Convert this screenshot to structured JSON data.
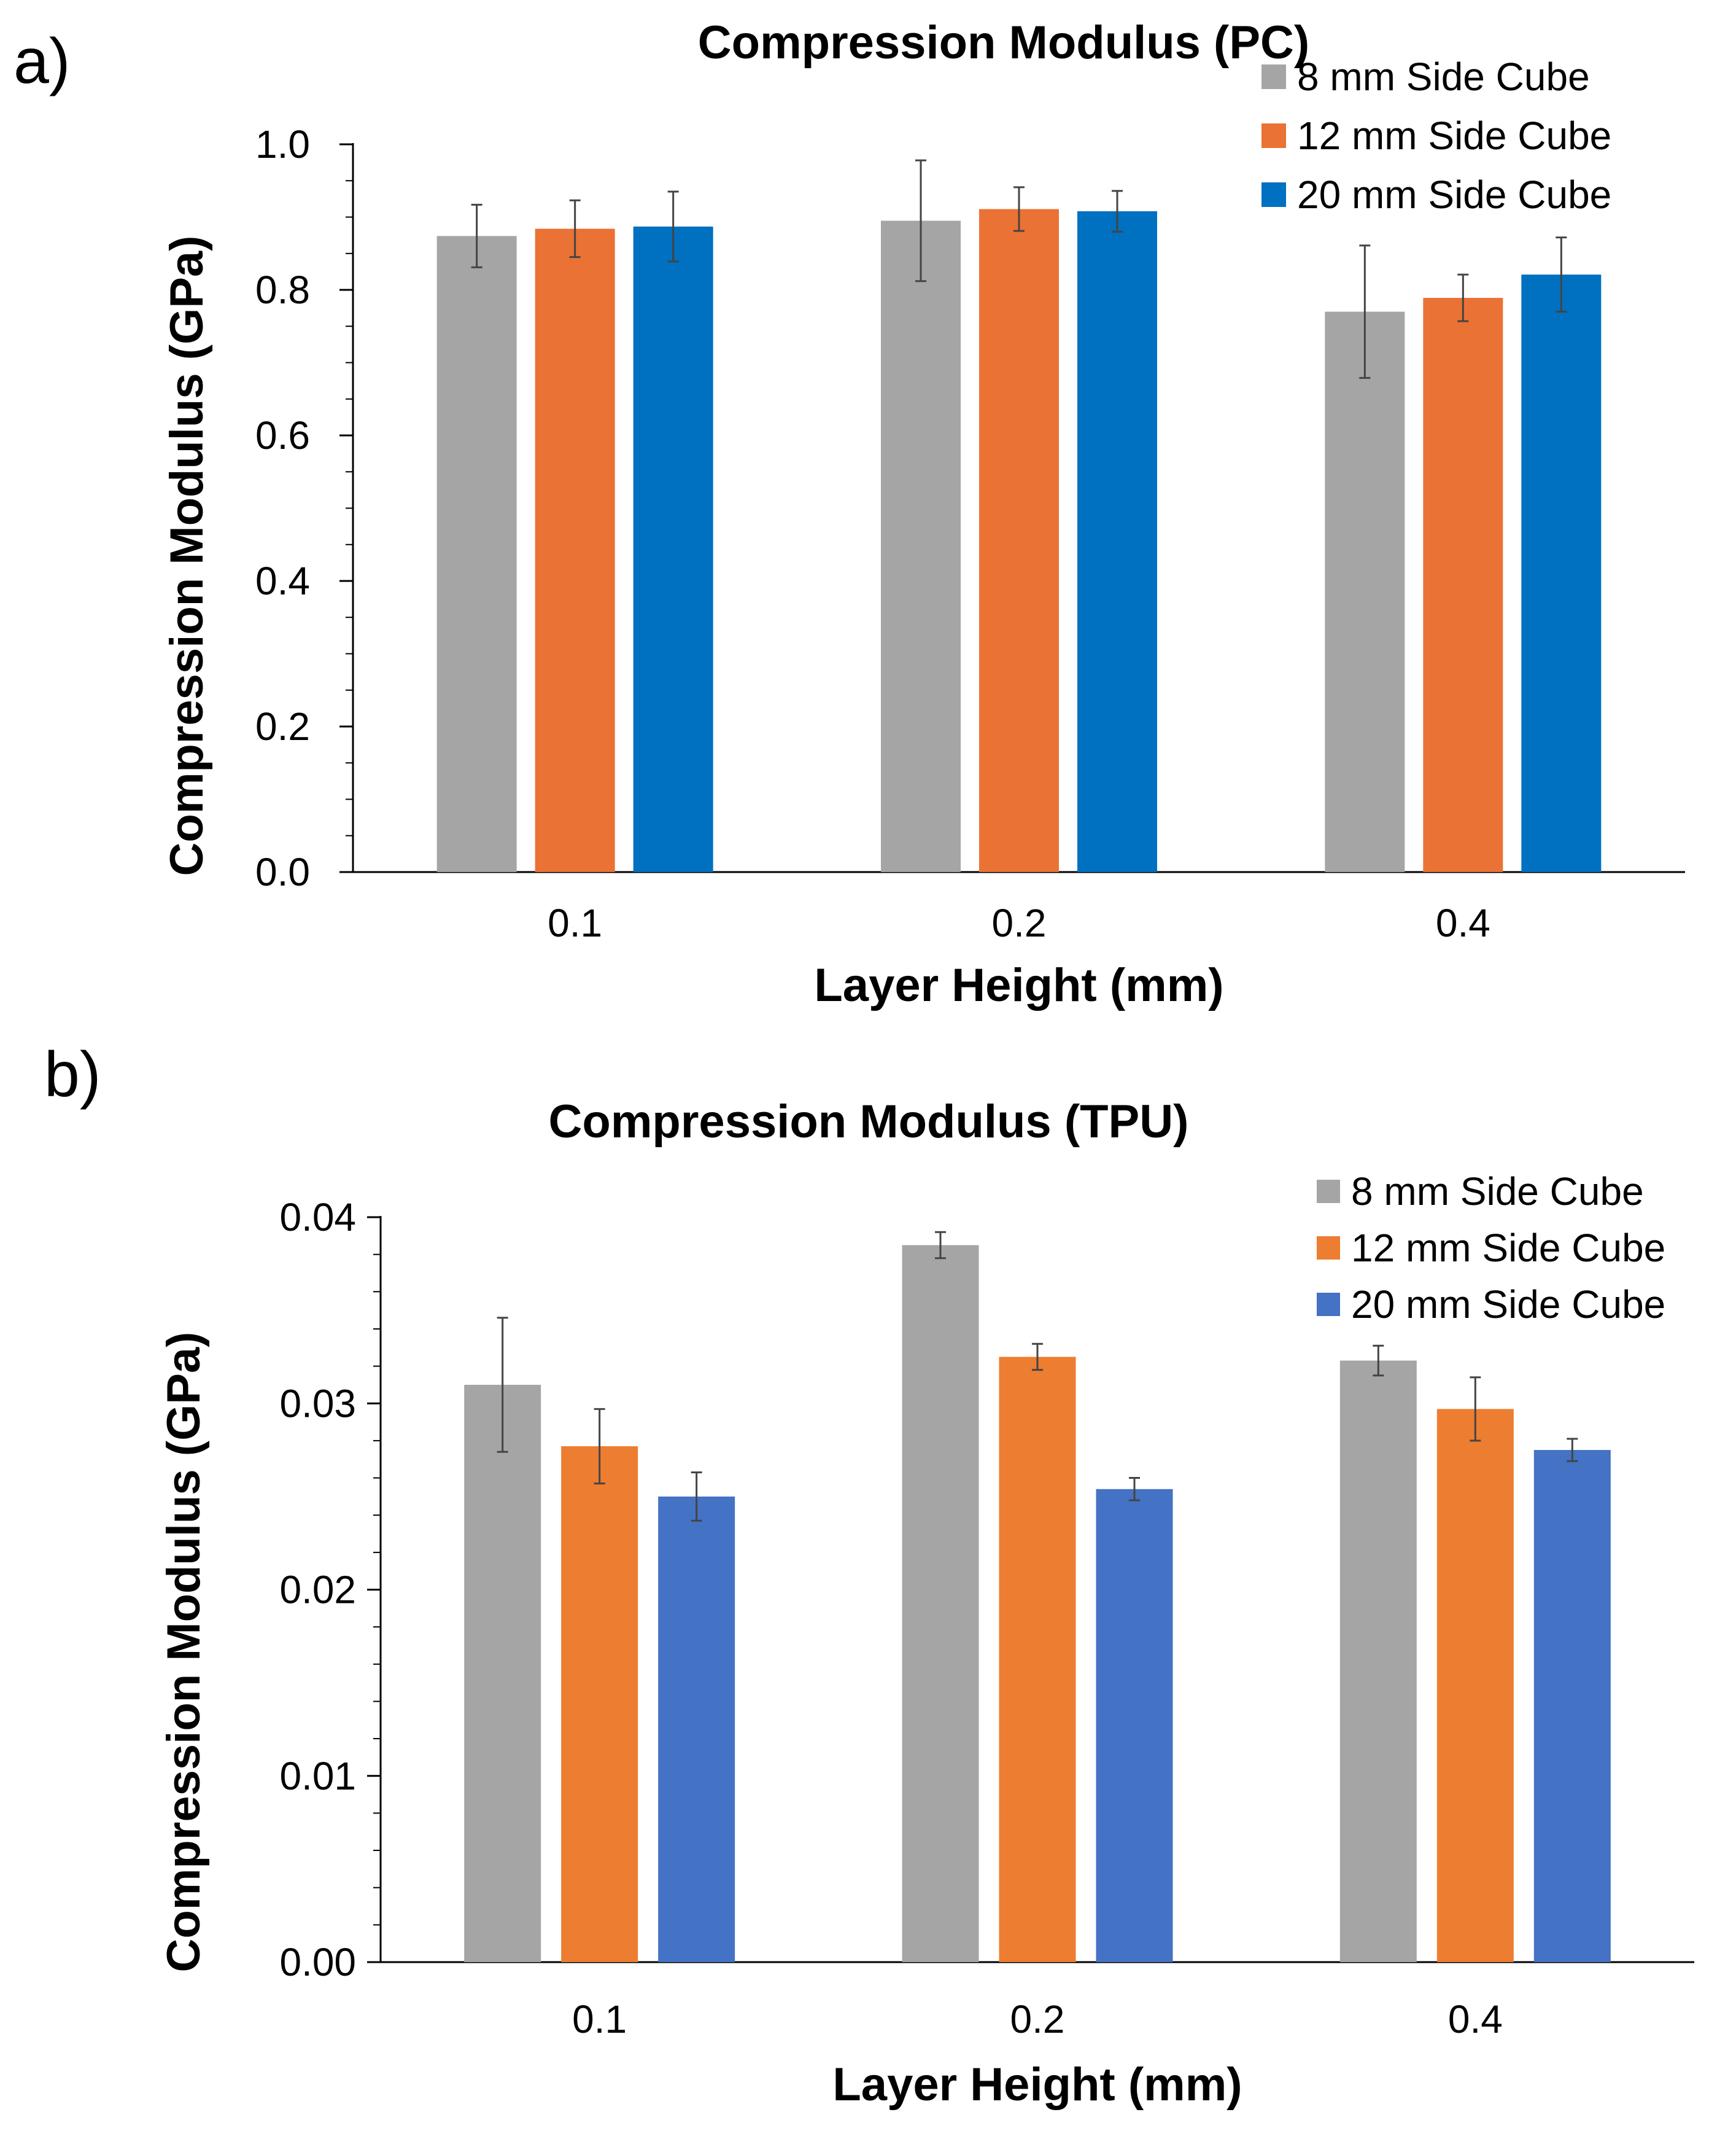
{
  "panels": [
    {
      "label": "a)",
      "chart_data": {
        "type": "bar",
        "title": "Compression Modulus (PC)",
        "xlabel": "Layer Height (mm)",
        "ylabel": "Compression Modulus (GPa)",
        "categories": [
          "0.1",
          "0.2",
          "0.4"
        ],
        "ylim": [
          0,
          1.0
        ],
        "yticks": [
          0.0,
          0.2,
          0.4,
          0.6,
          0.8,
          1.0
        ],
        "ytick_labels": [
          "0.0",
          "0.2",
          "0.4",
          "0.6",
          "0.8",
          "1.0"
        ],
        "minor_ticks_per_major": 4,
        "legend_position": "top-right",
        "grid": false,
        "series": [
          {
            "name": "8 mm Side Cube",
            "color": "#a5a5a5",
            "values": [
              0.874,
              0.895,
              0.77
            ],
            "errors": [
              0.043,
              0.083,
              0.091
            ]
          },
          {
            "name": "12 mm Side Cube",
            "color": "#ea7234",
            "values": [
              0.884,
              0.911,
              0.789
            ],
            "errors": [
              0.039,
              0.03,
              0.032
            ]
          },
          {
            "name": "20 mm Side Cube",
            "color": "#0070c0",
            "values": [
              0.887,
              0.908,
              0.821
            ],
            "errors": [
              0.048,
              0.028,
              0.051
            ]
          }
        ]
      }
    },
    {
      "label": "b)",
      "chart_data": {
        "type": "bar",
        "title": "Compression Modulus (TPU)",
        "xlabel": "Layer Height (mm)",
        "ylabel": "Compression Modulus (GPa)",
        "categories": [
          "0.1",
          "0.2",
          "0.4"
        ],
        "ylim": [
          0,
          0.04
        ],
        "yticks": [
          0.0,
          0.01,
          0.02,
          0.03,
          0.04
        ],
        "ytick_labels": [
          "0.00",
          "0.01",
          "0.02",
          "0.03",
          "0.04"
        ],
        "minor_ticks_per_major": 5,
        "legend_position": "top-right",
        "grid": false,
        "series": [
          {
            "name": "8 mm Side Cube",
            "color": "#a5a5a5",
            "values": [
              0.031,
              0.0385,
              0.0323
            ],
            "errors": [
              0.0036,
              0.0007,
              0.0008
            ]
          },
          {
            "name": "12 mm Side Cube",
            "color": "#ed7d31",
            "values": [
              0.0277,
              0.0325,
              0.0297
            ],
            "errors": [
              0.002,
              0.0007,
              0.0017
            ]
          },
          {
            "name": "20 mm Side Cube",
            "color": "#4472c4",
            "values": [
              0.025,
              0.0254,
              0.0275
            ],
            "errors": [
              0.0013,
              0.0006,
              0.0006
            ]
          }
        ]
      }
    }
  ]
}
